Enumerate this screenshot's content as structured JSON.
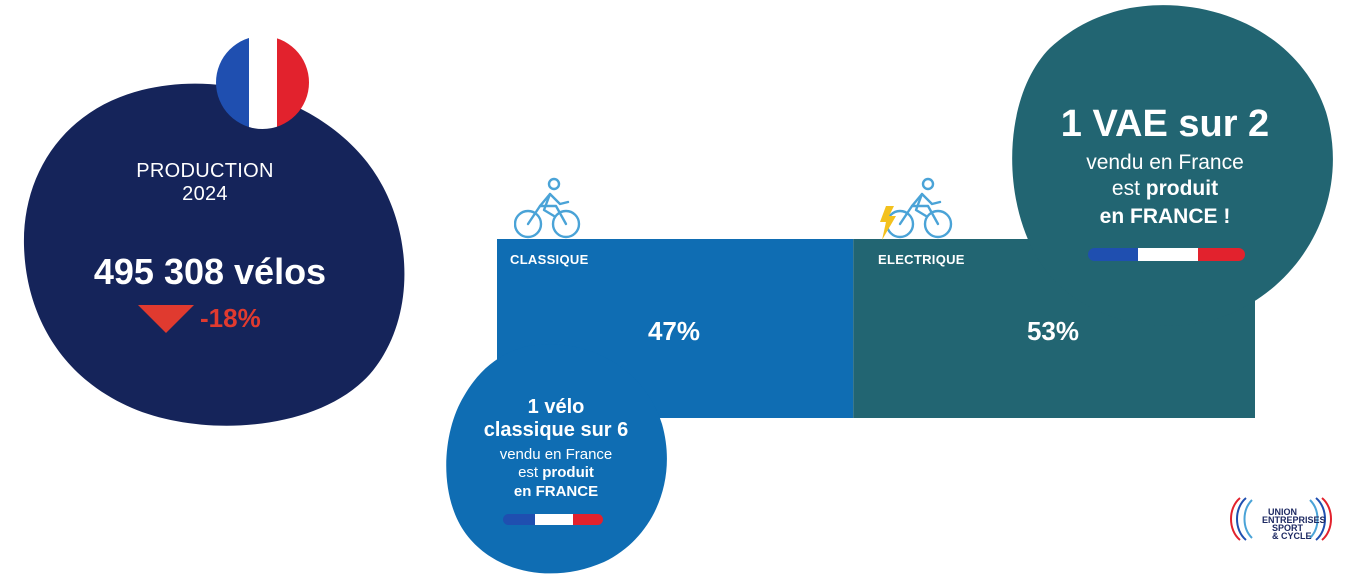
{
  "colors": {
    "navy": "#15245a",
    "blue_classique": "#0f6db3",
    "teal_electrique": "#226572",
    "red_accent": "#e03a2f",
    "flag_blue": "#1f4fb0",
    "flag_white": "#ffffff",
    "flag_red": "#e2222d",
    "bolt_yellow": "#f3c11d",
    "icon_blue": "#4aa3d7"
  },
  "production": {
    "title_line1": "PRODUCTION",
    "title_line2": "2024",
    "count": "495 308 vélos",
    "delta": "-18%",
    "icons": {
      "flag": "french-flag-icon",
      "arrow": "down-triangle-icon"
    }
  },
  "chart_data": {
    "type": "bar",
    "categories": [
      "CLASSIQUE",
      "ELECTRIQUE"
    ],
    "values": [
      47,
      53
    ],
    "value_labels": [
      "47%",
      "53%"
    ],
    "unit": "%",
    "orientation": "horizontal-stacked",
    "colors": [
      "#0f6db3",
      "#226572"
    ]
  },
  "callouts": {
    "vae": {
      "headline": "1 VAE sur 2",
      "line1": "vendu en France",
      "line2_prefix": "est ",
      "line2_bold": "produit",
      "line3": "en FRANCE !"
    },
    "classique": {
      "headline_line1": "1 vélo",
      "headline_line2": "classique sur 6",
      "line1": "vendu en France",
      "line2_prefix": "est ",
      "line2_bold": "produit",
      "line3": "en FRANCE"
    }
  },
  "logo": {
    "line1": "UNION",
    "line2": "ENTREPRISES",
    "line3": "SPORT",
    "line4": "& CYCLE"
  }
}
